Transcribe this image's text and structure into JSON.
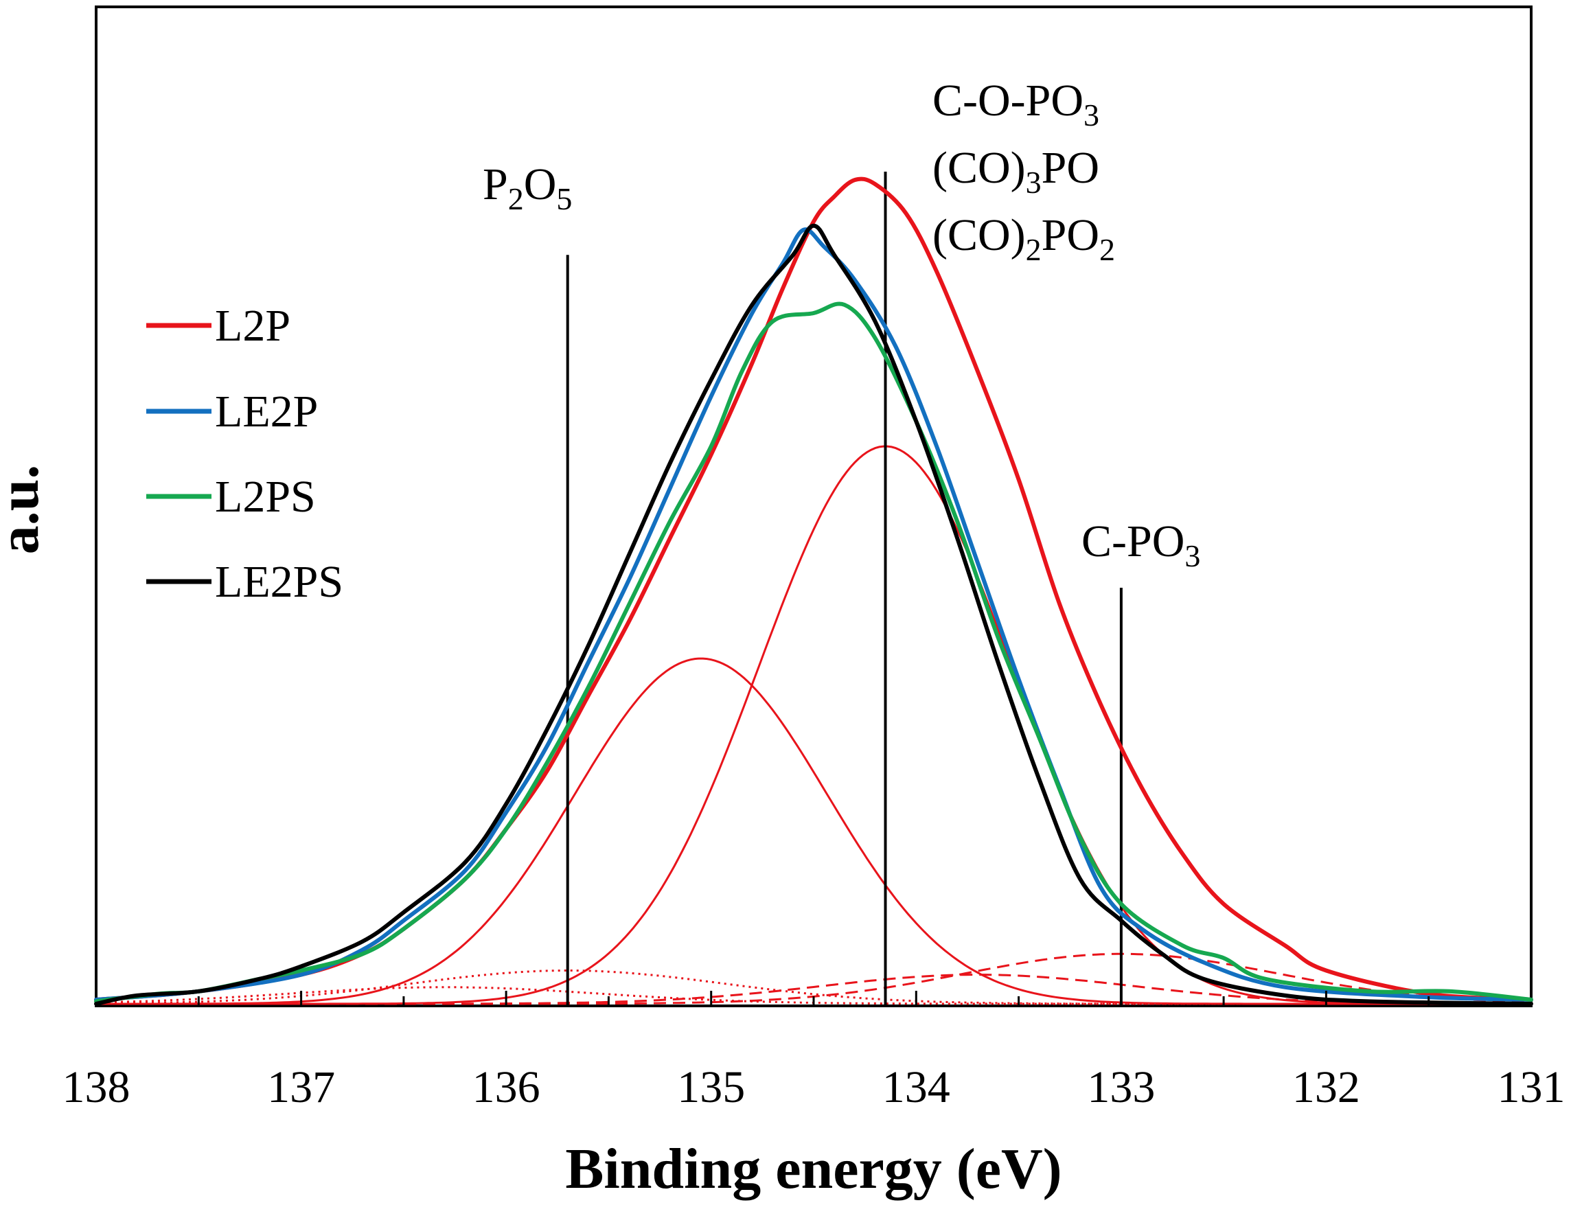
{
  "chart_data": {
    "type": "line",
    "title": "",
    "xlabel": "Binding energy (eV)",
    "ylabel": "a.u.",
    "xlim": [
      138,
      131
    ],
    "x_reversed": true,
    "ylim": [
      0,
      1.0
    ],
    "x_ticks": [
      "138",
      "137",
      "136",
      "135",
      "134",
      "133",
      "132",
      "131"
    ],
    "x_tick_values": [
      138,
      137,
      136,
      135,
      134,
      133,
      132,
      131
    ],
    "grid": false,
    "legend_position": "left",
    "series": [
      {
        "name": "L2P",
        "color": "#e8141b",
        "points": [
          [
            138.0,
            0.005
          ],
          [
            137.5,
            0.015
          ],
          [
            137.0,
            0.035
          ],
          [
            136.7,
            0.06
          ],
          [
            136.5,
            0.09
          ],
          [
            136.2,
            0.15
          ],
          [
            136.0,
            0.21
          ],
          [
            135.8,
            0.28
          ],
          [
            135.6,
            0.37
          ],
          [
            135.4,
            0.46
          ],
          [
            135.2,
            0.56
          ],
          [
            135.0,
            0.66
          ],
          [
            134.8,
            0.77
          ],
          [
            134.65,
            0.86
          ],
          [
            134.5,
            0.94
          ],
          [
            134.4,
            0.97
          ],
          [
            134.3,
            0.99
          ],
          [
            134.2,
            0.985
          ],
          [
            134.05,
            0.95
          ],
          [
            133.9,
            0.88
          ],
          [
            133.7,
            0.76
          ],
          [
            133.5,
            0.63
          ],
          [
            133.3,
            0.48
          ],
          [
            133.1,
            0.36
          ],
          [
            132.9,
            0.26
          ],
          [
            132.7,
            0.18
          ],
          [
            132.5,
            0.12
          ],
          [
            132.2,
            0.07
          ],
          [
            132.0,
            0.04
          ],
          [
            131.5,
            0.012
          ],
          [
            131.0,
            0.005
          ]
        ]
      },
      {
        "name": "LE2P",
        "color": "#1370c0",
        "points": [
          [
            138.0,
            0.005
          ],
          [
            137.5,
            0.015
          ],
          [
            137.0,
            0.035
          ],
          [
            136.7,
            0.065
          ],
          [
            136.5,
            0.1
          ],
          [
            136.2,
            0.16
          ],
          [
            136.0,
            0.23
          ],
          [
            135.8,
            0.31
          ],
          [
            135.6,
            0.41
          ],
          [
            135.4,
            0.51
          ],
          [
            135.2,
            0.62
          ],
          [
            135.0,
            0.73
          ],
          [
            134.8,
            0.83
          ],
          [
            134.65,
            0.89
          ],
          [
            134.55,
            0.93
          ],
          [
            134.45,
            0.91
          ],
          [
            134.3,
            0.87
          ],
          [
            134.1,
            0.79
          ],
          [
            133.9,
            0.67
          ],
          [
            133.7,
            0.53
          ],
          [
            133.5,
            0.39
          ],
          [
            133.3,
            0.26
          ],
          [
            133.1,
            0.14
          ],
          [
            132.9,
            0.09
          ],
          [
            132.6,
            0.05
          ],
          [
            132.2,
            0.02
          ],
          [
            131.5,
            0.008
          ],
          [
            131.0,
            0.005
          ]
        ]
      },
      {
        "name": "L2PS",
        "color": "#16a850",
        "points": [
          [
            138.0,
            0.003
          ],
          [
            137.7,
            0.012
          ],
          [
            137.5,
            0.015
          ],
          [
            137.2,
            0.03
          ],
          [
            137.0,
            0.04
          ],
          [
            136.7,
            0.06
          ],
          [
            136.5,
            0.09
          ],
          [
            136.2,
            0.15
          ],
          [
            136.0,
            0.21
          ],
          [
            135.8,
            0.29
          ],
          [
            135.6,
            0.38
          ],
          [
            135.4,
            0.48
          ],
          [
            135.2,
            0.58
          ],
          [
            135.0,
            0.67
          ],
          [
            134.85,
            0.76
          ],
          [
            134.7,
            0.82
          ],
          [
            134.5,
            0.83
          ],
          [
            134.35,
            0.84
          ],
          [
            134.2,
            0.8
          ],
          [
            134.0,
            0.7
          ],
          [
            133.8,
            0.58
          ],
          [
            133.6,
            0.44
          ],
          [
            133.4,
            0.32
          ],
          [
            133.2,
            0.2
          ],
          [
            133.0,
            0.12
          ],
          [
            132.7,
            0.07
          ],
          [
            132.5,
            0.055
          ],
          [
            132.3,
            0.03
          ],
          [
            131.8,
            0.015
          ],
          [
            131.4,
            0.015
          ],
          [
            131.0,
            0.005
          ]
        ]
      },
      {
        "name": "LE2PS",
        "color": "#000000",
        "points": [
          [
            138.0,
            0.0
          ],
          [
            137.8,
            0.01
          ],
          [
            137.5,
            0.015
          ],
          [
            137.2,
            0.03
          ],
          [
            137.0,
            0.045
          ],
          [
            136.7,
            0.075
          ],
          [
            136.5,
            0.11
          ],
          [
            136.2,
            0.17
          ],
          [
            136.0,
            0.24
          ],
          [
            135.8,
            0.33
          ],
          [
            135.6,
            0.43
          ],
          [
            135.4,
            0.54
          ],
          [
            135.2,
            0.65
          ],
          [
            135.0,
            0.75
          ],
          [
            134.8,
            0.84
          ],
          [
            134.6,
            0.9
          ],
          [
            134.5,
            0.935
          ],
          [
            134.4,
            0.9
          ],
          [
            134.2,
            0.82
          ],
          [
            134.0,
            0.7
          ],
          [
            133.8,
            0.56
          ],
          [
            133.6,
            0.41
          ],
          [
            133.4,
            0.27
          ],
          [
            133.2,
            0.15
          ],
          [
            133.0,
            0.1
          ],
          [
            132.8,
            0.06
          ],
          [
            132.6,
            0.03
          ],
          [
            132.2,
            0.01
          ],
          [
            131.8,
            0.003
          ],
          [
            131.0,
            0.0
          ]
        ]
      }
    ],
    "fit_components": [
      {
        "name": "component peak 134.15 eV",
        "style": "solid",
        "color": "#e8141b",
        "center": 134.15,
        "height": 0.67,
        "fwhm": 1.45
      },
      {
        "name": "component peak 135.05 eV",
        "style": "solid",
        "color": "#e8141b",
        "center": 135.05,
        "height": 0.415,
        "fwhm": 1.45
      },
      {
        "name": "component peak 135.7 eV",
        "style": "dotted",
        "color": "#e8141b",
        "center": 135.7,
        "height": 0.04,
        "fwhm": 1.8
      },
      {
        "name": "component peak 136.3 eV",
        "style": "dotted",
        "color": "#e8141b",
        "center": 136.3,
        "height": 0.02,
        "fwhm": 1.8
      },
      {
        "name": "component peak 133.0 eV",
        "style": "dashed",
        "color": "#e8141b",
        "center": 133.0,
        "height": 0.06,
        "fwhm": 1.8
      },
      {
        "name": "component peak 133.7 eV",
        "style": "dashed",
        "color": "#e8141b",
        "center": 133.7,
        "height": 0.035,
        "fwhm": 1.8
      }
    ],
    "reference_lines": [
      {
        "name": "P2O5",
        "x": 135.7,
        "top": 0.9
      },
      {
        "name": "C-O-PO3",
        "x": 134.15,
        "top": 1.0
      },
      {
        "name": "C-PO3",
        "x": 133.0,
        "top": 0.5
      }
    ],
    "annotations": {
      "p2o5": {
        "a": "P",
        "a_sub": "2",
        "b": "O",
        "b_sub": "5"
      },
      "c_o_po3": {
        "a": "C-O-PO",
        "a_sub": "3"
      },
      "co3po": {
        "a": "(CO)",
        "a_sub": "3",
        "b": "PO"
      },
      "co2po2": {
        "a": "(CO)",
        "a_sub": "2",
        "b": "PO",
        "b_sub": "2"
      },
      "c_po3": {
        "a": "C-PO",
        "a_sub": "3"
      }
    }
  }
}
